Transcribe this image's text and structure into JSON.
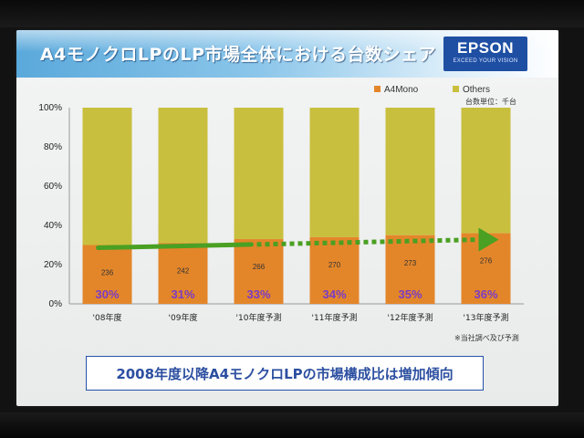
{
  "slide": {
    "title": "A4モノクロLPのLP市場全体における台数シェア",
    "logo": {
      "name": "EPSON",
      "tagline": "EXCEED YOUR VISION"
    },
    "unit_note": "台数単位：千台",
    "source_note": "※当社調べ及び予測",
    "conclusion": "2008年度以降A4モノクロLPの市場構成比は増加傾向"
  },
  "colors": {
    "a4mono": "#e3862a",
    "others": "#c9bf3e",
    "trend_arrow": "#4aa022",
    "percent_label": "#7b3cc4",
    "title_band": "#5aa9db",
    "logo_bg": "#1f4fa3",
    "banner_text": "#2c4fa0"
  },
  "chart_data": {
    "type": "bar",
    "stacked": true,
    "categories": [
      "'08年度",
      "'09年度",
      "'10年度予測",
      "'11年度予測",
      "'12年度予測",
      "'13年度予測"
    ],
    "series": [
      {
        "name": "A4Mono",
        "values": [
          30,
          31,
          33,
          34,
          35,
          36
        ],
        "value_labels": [
          "236",
          "242",
          "266",
          "270",
          "273",
          "276"
        ],
        "percent_labels": [
          "30%",
          "31%",
          "33%",
          "34%",
          "35%",
          "36%"
        ]
      },
      {
        "name": "Others",
        "values": [
          70,
          69,
          67,
          66,
          65,
          64
        ]
      }
    ],
    "yticks": [
      "0%",
      "20%",
      "40%",
      "60%",
      "80%",
      "100%"
    ],
    "ylim": [
      0,
      100
    ],
    "legend": [
      "A4Mono",
      "Others"
    ],
    "legend_position": "top-right",
    "annotations": [
      "trend-arrow-solid-to-dotted"
    ]
  }
}
